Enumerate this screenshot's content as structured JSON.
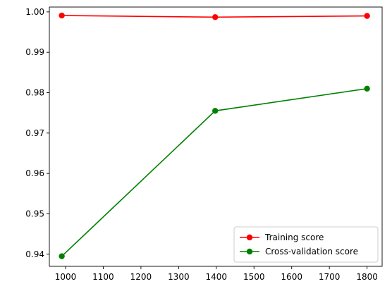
{
  "chart_data": {
    "type": "line",
    "title": "",
    "xlabel": "",
    "ylabel": "",
    "xlim": [
      957,
      1840
    ],
    "ylim": [
      0.937,
      1.0012
    ],
    "grid": false,
    "legend_position": "lower-right",
    "x_ticks": [
      1000,
      1100,
      1200,
      1300,
      1400,
      1500,
      1600,
      1700,
      1800
    ],
    "x_tick_labels": [
      "1000",
      "1100",
      "1200",
      "1300",
      "1400",
      "1500",
      "1600",
      "1700",
      "1800"
    ],
    "y_ticks": [
      0.94,
      0.95,
      0.96,
      0.97,
      0.98,
      0.99,
      1.0
    ],
    "y_tick_labels": [
      "0.94",
      "0.95",
      "0.96",
      "0.97",
      "0.98",
      "0.99",
      "1.00"
    ],
    "series": [
      {
        "name": "Training score",
        "color": "#ff0000",
        "x": [
          990,
          1397,
          1800
        ],
        "y": [
          0.9991,
          0.9987,
          0.999
        ]
      },
      {
        "name": "Cross-validation score",
        "color": "#008000",
        "x": [
          990,
          1397,
          1800
        ],
        "y": [
          0.9395,
          0.9755,
          0.981
        ]
      }
    ]
  }
}
